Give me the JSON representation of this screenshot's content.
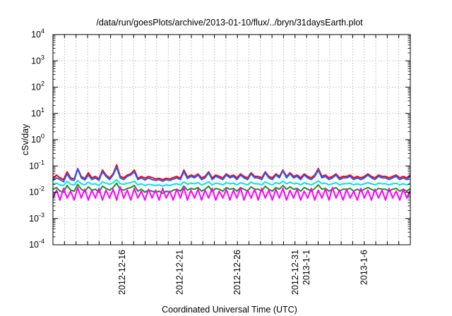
{
  "chart_data": {
    "type": "line",
    "title": "/data/run/goesPlots/archive/2013-01-10/flux/../bryn/31daysEarth.plot",
    "xlabel": "Coordinated Universal Time (UTC)",
    "ylabel": "cSv/day",
    "yscale": "log",
    "ylim": [
      0.0001,
      10000
    ],
    "xlim": [
      "2012-12-10",
      "2013-01-10"
    ],
    "grid": true,
    "x_ticks": [
      {
        "date": "2012-12-16",
        "label": "2012-12-16"
      },
      {
        "date": "2012-12-21",
        "label": "2012-12-21"
      },
      {
        "date": "2012-12-26",
        "label": "2012-12-26"
      },
      {
        "date": "2012-12-31",
        "label": "2012-12-31"
      },
      {
        "date": "2013-01-01",
        "label": "2013-1-1"
      },
      {
        "date": "2013-01-06",
        "label": "2013-1-6"
      }
    ],
    "y_ticks": [
      {
        "value": 0.0001,
        "base": "10",
        "exp": "-4"
      },
      {
        "value": 0.001,
        "base": "10",
        "exp": "-3"
      },
      {
        "value": 0.01,
        "base": "10",
        "exp": "-2"
      },
      {
        "value": 0.1,
        "base": "10",
        "exp": "-1"
      },
      {
        "value": 1,
        "base": "10",
        "exp": "0"
      },
      {
        "value": 10,
        "base": "10",
        "exp": "1"
      },
      {
        "value": 100,
        "base": "10",
        "exp": "2"
      },
      {
        "value": 1000,
        "base": "10",
        "exp": "3"
      },
      {
        "value": 10000,
        "base": "10",
        "exp": "4"
      }
    ],
    "series": [
      {
        "color": "#ff0000",
        "values": [
          0.032,
          0.045,
          0.035,
          0.03,
          0.06,
          0.035,
          0.032,
          0.08,
          0.04,
          0.033,
          0.055,
          0.035,
          0.04,
          0.032,
          0.07,
          0.045,
          0.035,
          0.05,
          0.11,
          0.04,
          0.035,
          0.045,
          0.05,
          0.07,
          0.034,
          0.04,
          0.034,
          0.04,
          0.036,
          0.032,
          0.034,
          0.03,
          0.034,
          0.032,
          0.036,
          0.04,
          0.034,
          0.07,
          0.038,
          0.045,
          0.04,
          0.05,
          0.035,
          0.04,
          0.06,
          0.035,
          0.045,
          0.04,
          0.035,
          0.05,
          0.04,
          0.045,
          0.035,
          0.05,
          0.04,
          0.035,
          0.055,
          0.04,
          0.04,
          0.035,
          0.06,
          0.04,
          0.035,
          0.05,
          0.04,
          0.07,
          0.04,
          0.055,
          0.04,
          0.045,
          0.035,
          0.05,
          0.04,
          0.035,
          0.045,
          0.08,
          0.04,
          0.045,
          0.035,
          0.04,
          0.05,
          0.035,
          0.04,
          0.04,
          0.045,
          0.035,
          0.04,
          0.035,
          0.04,
          0.05,
          0.04,
          0.035,
          0.045,
          0.04,
          0.04,
          0.035,
          0.04,
          0.045,
          0.035,
          0.04,
          0.035,
          0.045
        ]
      },
      {
        "color": "#1f5fff",
        "values": [
          0.028,
          0.035,
          0.03,
          0.025,
          0.05,
          0.03,
          0.028,
          0.075,
          0.035,
          0.029,
          0.045,
          0.03,
          0.035,
          0.028,
          0.06,
          0.04,
          0.03,
          0.045,
          0.09,
          0.035,
          0.03,
          0.04,
          0.045,
          0.06,
          0.03,
          0.035,
          0.029,
          0.035,
          0.03,
          0.028,
          0.03,
          0.026,
          0.03,
          0.028,
          0.031,
          0.035,
          0.03,
          0.06,
          0.033,
          0.04,
          0.035,
          0.045,
          0.03,
          0.035,
          0.055,
          0.03,
          0.04,
          0.035,
          0.03,
          0.045,
          0.035,
          0.04,
          0.03,
          0.045,
          0.035,
          0.03,
          0.05,
          0.035,
          0.035,
          0.03,
          0.055,
          0.035,
          0.03,
          0.045,
          0.035,
          0.065,
          0.035,
          0.05,
          0.035,
          0.04,
          0.03,
          0.045,
          0.035,
          0.03,
          0.04,
          0.07,
          0.035,
          0.04,
          0.03,
          0.035,
          0.045,
          0.03,
          0.035,
          0.035,
          0.04,
          0.03,
          0.035,
          0.03,
          0.035,
          0.045,
          0.035,
          0.03,
          0.04,
          0.035,
          0.035,
          0.03,
          0.035,
          0.04,
          0.03,
          0.035,
          0.03,
          0.04
        ]
      },
      {
        "color": "#00e5e5",
        "values": [
          0.02,
          0.022,
          0.019,
          0.018,
          0.026,
          0.02,
          0.019,
          0.028,
          0.021,
          0.019,
          0.024,
          0.02,
          0.021,
          0.018,
          0.025,
          0.022,
          0.02,
          0.023,
          0.03,
          0.021,
          0.02,
          0.022,
          0.023,
          0.026,
          0.019,
          0.021,
          0.018,
          0.02,
          0.019,
          0.018,
          0.019,
          0.017,
          0.019,
          0.018,
          0.02,
          0.021,
          0.019,
          0.025,
          0.02,
          0.022,
          0.021,
          0.023,
          0.019,
          0.021,
          0.025,
          0.019,
          0.022,
          0.021,
          0.019,
          0.023,
          0.021,
          0.022,
          0.019,
          0.023,
          0.021,
          0.019,
          0.024,
          0.021,
          0.021,
          0.019,
          0.025,
          0.021,
          0.019,
          0.023,
          0.021,
          0.026,
          0.021,
          0.024,
          0.021,
          0.022,
          0.019,
          0.023,
          0.021,
          0.019,
          0.022,
          0.027,
          0.021,
          0.022,
          0.019,
          0.021,
          0.023,
          0.019,
          0.021,
          0.021,
          0.022,
          0.019,
          0.021,
          0.019,
          0.021,
          0.023,
          0.021,
          0.019,
          0.022,
          0.021,
          0.021,
          0.019,
          0.021,
          0.022,
          0.019,
          0.021,
          0.019,
          0.022
        ]
      },
      {
        "color": "#228b22",
        "values": [
          0.013,
          0.015,
          0.011,
          0.01,
          0.018,
          0.012,
          0.011,
          0.02,
          0.013,
          0.011,
          0.016,
          0.012,
          0.013,
          0.01,
          0.017,
          0.014,
          0.012,
          0.015,
          0.022,
          0.013,
          0.012,
          0.014,
          0.015,
          0.018,
          0.011,
          0.013,
          0.01,
          0.012,
          0.011,
          0.01,
          0.011,
          0.009,
          0.011,
          0.01,
          0.012,
          0.013,
          0.011,
          0.017,
          0.012,
          0.014,
          0.013,
          0.015,
          0.011,
          0.013,
          0.017,
          0.011,
          0.014,
          0.013,
          0.011,
          0.015,
          0.013,
          0.014,
          0.011,
          0.015,
          0.013,
          0.011,
          0.016,
          0.013,
          0.013,
          0.011,
          0.017,
          0.013,
          0.011,
          0.015,
          0.013,
          0.018,
          0.013,
          0.016,
          0.013,
          0.014,
          0.011,
          0.015,
          0.013,
          0.011,
          0.014,
          0.019,
          0.013,
          0.014,
          0.011,
          0.013,
          0.015,
          0.011,
          0.013,
          0.013,
          0.014,
          0.011,
          0.013,
          0.011,
          0.013,
          0.015,
          0.013,
          0.011,
          0.014,
          0.013,
          0.013,
          0.011,
          0.013,
          0.014,
          0.011,
          0.013,
          0.011,
          0.014
        ]
      },
      {
        "color": "#ff00ff",
        "values": [
          0.006,
          0.012,
          0.005,
          0.014,
          0.006,
          0.011,
          0.005,
          0.015,
          0.006,
          0.013,
          0.005,
          0.012,
          0.006,
          0.014,
          0.005,
          0.012,
          0.006,
          0.013,
          0.005,
          0.016,
          0.006,
          0.012,
          0.005,
          0.014,
          0.006,
          0.011,
          0.005,
          0.013,
          0.006,
          0.012,
          0.005,
          0.014,
          0.006,
          0.011,
          0.005,
          0.013,
          0.006,
          0.015,
          0.005,
          0.012,
          0.006,
          0.013,
          0.005,
          0.012,
          0.006,
          0.014,
          0.005,
          0.011,
          0.006,
          0.013,
          0.005,
          0.012,
          0.006,
          0.015,
          0.005,
          0.012,
          0.006,
          0.013,
          0.005,
          0.014,
          0.006,
          0.012,
          0.005,
          0.013,
          0.006,
          0.014,
          0.005,
          0.012,
          0.006,
          0.013,
          0.005,
          0.011,
          0.006,
          0.014,
          0.005,
          0.012,
          0.006,
          0.013,
          0.005,
          0.015,
          0.006,
          0.012,
          0.005,
          0.013,
          0.006,
          0.011,
          0.005,
          0.014,
          0.006,
          0.012,
          0.005,
          0.013,
          0.006,
          0.012,
          0.005,
          0.014,
          0.006,
          0.011,
          0.005,
          0.013,
          0.006,
          0.012
        ]
      }
    ]
  }
}
